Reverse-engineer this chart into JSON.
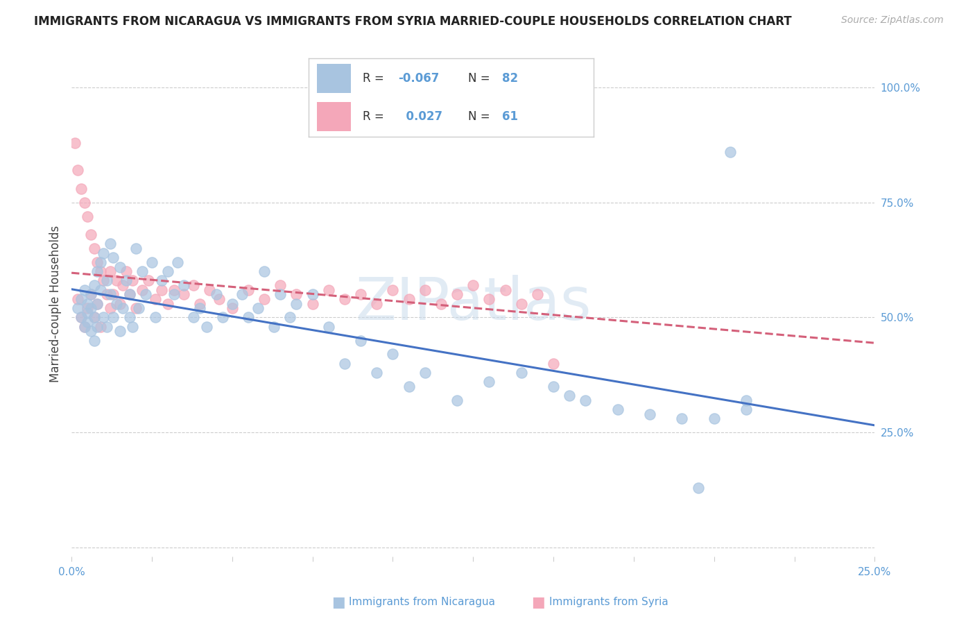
{
  "title": "IMMIGRANTS FROM NICARAGUA VS IMMIGRANTS FROM SYRIA MARRIED-COUPLE HOUSEHOLDS CORRELATION CHART",
  "source": "Source: ZipAtlas.com",
  "ylabel": "Married-couple Households",
  "xlim": [
    0.0,
    0.25
  ],
  "ylim": [
    -0.02,
    1.08
  ],
  "yticks": [
    0.0,
    0.25,
    0.5,
    0.75,
    1.0
  ],
  "ytick_labels": [
    "",
    "25.0%",
    "50.0%",
    "75.0%",
    "100.0%"
  ],
  "xtick_positions": [
    0.0,
    0.025,
    0.05,
    0.075,
    0.1,
    0.125,
    0.15,
    0.175,
    0.2,
    0.225,
    0.25
  ],
  "xtick_label_left": "0.0%",
  "xtick_label_right": "25.0%",
  "R_nicaragua": -0.067,
  "N_nicaragua": 82,
  "R_syria": 0.027,
  "N_syria": 61,
  "color_nicaragua": "#a8c4e0",
  "color_syria": "#f4a7b9",
  "line_color_nicaragua": "#4472c4",
  "line_color_syria": "#d4607a",
  "title_fontsize": 12,
  "tick_fontsize": 11,
  "source_fontsize": 10,
  "tick_color": "#5b9bd5",
  "title_color": "#222222",
  "ylabel_color": "#444444",
  "grid_color": "#cccccc",
  "bottom_label_color": "#5b9bd5",
  "legend_value_color": "#5b9bd5",
  "watermark_color": "#c5d8ea",
  "scatter_size": 120,
  "scatter_alpha": 0.7,
  "nicaragua_x": [
    0.002,
    0.003,
    0.003,
    0.004,
    0.004,
    0.005,
    0.005,
    0.005,
    0.006,
    0.006,
    0.006,
    0.007,
    0.007,
    0.007,
    0.008,
    0.008,
    0.008,
    0.009,
    0.009,
    0.01,
    0.01,
    0.011,
    0.011,
    0.012,
    0.012,
    0.013,
    0.013,
    0.014,
    0.015,
    0.015,
    0.016,
    0.017,
    0.018,
    0.018,
    0.019,
    0.02,
    0.021,
    0.022,
    0.023,
    0.025,
    0.026,
    0.028,
    0.03,
    0.032,
    0.033,
    0.035,
    0.038,
    0.04,
    0.042,
    0.045,
    0.047,
    0.05,
    0.053,
    0.055,
    0.058,
    0.06,
    0.063,
    0.065,
    0.068,
    0.07,
    0.075,
    0.08,
    0.085,
    0.09,
    0.095,
    0.1,
    0.105,
    0.11,
    0.12,
    0.13,
    0.14,
    0.15,
    0.155,
    0.16,
    0.17,
    0.18,
    0.19,
    0.2,
    0.205,
    0.21,
    0.21,
    0.195
  ],
  "nicaragua_y": [
    0.52,
    0.5,
    0.54,
    0.48,
    0.56,
    0.51,
    0.49,
    0.53,
    0.47,
    0.55,
    0.52,
    0.5,
    0.57,
    0.45,
    0.6,
    0.53,
    0.48,
    0.56,
    0.62,
    0.5,
    0.64,
    0.58,
    0.48,
    0.66,
    0.55,
    0.5,
    0.63,
    0.53,
    0.61,
    0.47,
    0.52,
    0.58,
    0.5,
    0.55,
    0.48,
    0.65,
    0.52,
    0.6,
    0.55,
    0.62,
    0.5,
    0.58,
    0.6,
    0.55,
    0.62,
    0.57,
    0.5,
    0.52,
    0.48,
    0.55,
    0.5,
    0.53,
    0.55,
    0.5,
    0.52,
    0.6,
    0.48,
    0.55,
    0.5,
    0.53,
    0.55,
    0.48,
    0.4,
    0.45,
    0.38,
    0.42,
    0.35,
    0.38,
    0.32,
    0.36,
    0.38,
    0.35,
    0.33,
    0.32,
    0.3,
    0.29,
    0.28,
    0.28,
    0.86,
    0.32,
    0.3,
    0.13
  ],
  "syria_x": [
    0.001,
    0.002,
    0.002,
    0.003,
    0.003,
    0.004,
    0.004,
    0.005,
    0.005,
    0.006,
    0.006,
    0.007,
    0.007,
    0.008,
    0.008,
    0.009,
    0.009,
    0.01,
    0.011,
    0.012,
    0.012,
    0.013,
    0.014,
    0.015,
    0.016,
    0.017,
    0.018,
    0.019,
    0.02,
    0.022,
    0.024,
    0.026,
    0.028,
    0.03,
    0.032,
    0.035,
    0.038,
    0.04,
    0.043,
    0.046,
    0.05,
    0.055,
    0.06,
    0.065,
    0.07,
    0.075,
    0.08,
    0.085,
    0.09,
    0.095,
    0.1,
    0.105,
    0.11,
    0.115,
    0.12,
    0.125,
    0.13,
    0.135,
    0.14,
    0.145,
    0.15
  ],
  "syria_y": [
    0.88,
    0.82,
    0.54,
    0.78,
    0.5,
    0.75,
    0.48,
    0.72,
    0.52,
    0.68,
    0.55,
    0.65,
    0.5,
    0.62,
    0.53,
    0.6,
    0.48,
    0.58,
    0.55,
    0.6,
    0.52,
    0.55,
    0.58,
    0.53,
    0.57,
    0.6,
    0.55,
    0.58,
    0.52,
    0.56,
    0.58,
    0.54,
    0.56,
    0.53,
    0.56,
    0.55,
    0.57,
    0.53,
    0.56,
    0.54,
    0.52,
    0.56,
    0.54,
    0.57,
    0.55,
    0.53,
    0.56,
    0.54,
    0.55,
    0.53,
    0.56,
    0.54,
    0.56,
    0.53,
    0.55,
    0.57,
    0.54,
    0.56,
    0.53,
    0.55,
    0.4
  ]
}
